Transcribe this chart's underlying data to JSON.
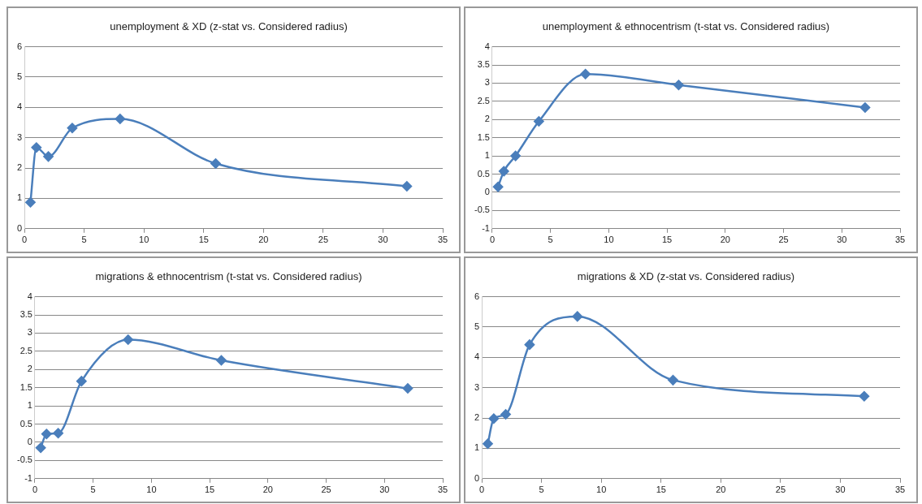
{
  "chart_data": [
    {
      "type": "line",
      "title": "unemployment & XD (z-stat vs. Considered radius)",
      "x": [
        0.5,
        1,
        2,
        4,
        8,
        16,
        32
      ],
      "series": [
        {
          "color": "#4a7ebb",
          "values": [
            0.87,
            2.68,
            2.38,
            3.32,
            3.62,
            2.15,
            1.4
          ]
        }
      ],
      "xlim": [
        0,
        35
      ],
      "xticks": [
        0,
        5,
        10,
        15,
        20,
        25,
        30,
        35
      ],
      "ylim": [
        0,
        6
      ],
      "yticks": [
        0,
        1,
        2,
        3,
        4,
        5,
        6
      ],
      "grid": "y",
      "legend": false,
      "marker": "diamond",
      "line_style": "solid"
    },
    {
      "type": "line",
      "title": "unemployment & ethnocentrism (t-stat vs. Considered radius)",
      "x": [
        0.5,
        1,
        2,
        4,
        8,
        16,
        32
      ],
      "series": [
        {
          "color": "#4a7ebb",
          "values": [
            0.15,
            0.58,
            1.0,
            1.95,
            3.25,
            2.95,
            2.33
          ]
        }
      ],
      "xlim": [
        0,
        35
      ],
      "xticks": [
        0,
        5,
        10,
        15,
        20,
        25,
        30,
        35
      ],
      "ylim": [
        -1,
        4
      ],
      "yticks": [
        -1,
        -0.5,
        0,
        0.5,
        1,
        1.5,
        2,
        2.5,
        3,
        3.5,
        4
      ],
      "grid": "y",
      "legend": false,
      "marker": "diamond",
      "line_style": "solid"
    },
    {
      "type": "line",
      "title": "migrations & ethnocentrism (t-stat vs. Considered radius)",
      "x": [
        0.5,
        1,
        2,
        4,
        8,
        16,
        32
      ],
      "series": [
        {
          "color": "#4a7ebb",
          "values": [
            -0.15,
            0.23,
            0.25,
            1.68,
            2.82,
            2.25,
            1.48
          ]
        }
      ],
      "xlim": [
        0,
        35
      ],
      "xticks": [
        0,
        5,
        10,
        15,
        20,
        25,
        30,
        35
      ],
      "ylim": [
        -1,
        4
      ],
      "yticks": [
        -1,
        -0.5,
        0,
        0.5,
        1,
        1.5,
        2,
        2.5,
        3,
        3.5,
        4
      ],
      "grid": "y",
      "legend": false,
      "marker": "diamond",
      "line_style": "solid"
    },
    {
      "type": "line",
      "title": "migrations & XD (z-stat vs. Considered radius)",
      "x": [
        0.5,
        1,
        2,
        4,
        8,
        16,
        32
      ],
      "series": [
        {
          "color": "#4a7ebb",
          "values": [
            1.15,
            1.98,
            2.12,
            4.42,
            5.35,
            3.25,
            2.72
          ]
        }
      ],
      "xlim": [
        0,
        35
      ],
      "xticks": [
        0,
        5,
        10,
        15,
        20,
        25,
        30,
        35
      ],
      "ylim": [
        0,
        6
      ],
      "yticks": [
        0,
        1,
        2,
        3,
        4,
        5,
        6
      ],
      "grid": "y",
      "legend": false,
      "marker": "diamond",
      "line_style": "solid"
    }
  ]
}
